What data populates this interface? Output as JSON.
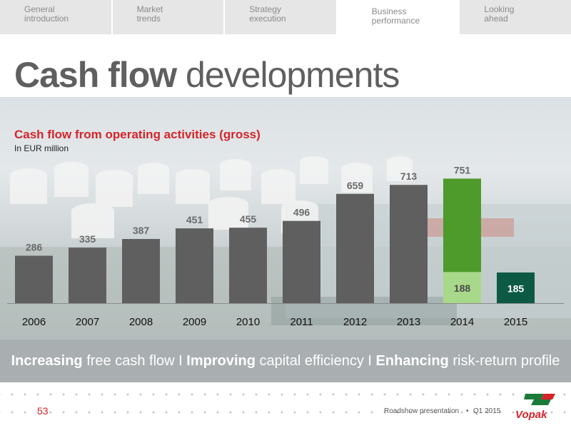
{
  "nav": {
    "tabs": [
      {
        "line1": "General",
        "line2": "introduction"
      },
      {
        "line1": "Market",
        "line2": "trends"
      },
      {
        "line1": "Strategy",
        "line2": "execution"
      },
      {
        "line1": "Business",
        "line2": "performance"
      },
      {
        "line1": "Looking",
        "line2": "ahead"
      }
    ],
    "active_index": 3
  },
  "title": {
    "bold": "Cash flow",
    "rest": " developments"
  },
  "banner": [
    {
      "text": "Increasing",
      "bold": true
    },
    {
      "text": " free cash flow I ",
      "bold": false
    },
    {
      "text": "Improving",
      "bold": true
    },
    {
      "text": " capital efficiency I ",
      "bold": false
    },
    {
      "text": "Enhancing",
      "bold": true
    },
    {
      "text": " risk-return profile",
      "bold": false
    }
  ],
  "footer": {
    "page_number": "53",
    "presentation": "Roadshow presentation",
    "date": "Q1 2015",
    "logo_text": "Vopak"
  },
  "colors": {
    "bar_gray": "#5f5f5f",
    "bar_green": "#4e9a2a",
    "bar_light_green": "#a8d88a",
    "bar_teal": "#0d5a44",
    "title_red": "#d6242a"
  },
  "chart_data": {
    "type": "bar",
    "title": "Cash flow from operating activities (gross)",
    "subtitle": "In EUR million",
    "categories": [
      "2006",
      "2007",
      "2008",
      "2009",
      "2010",
      "2011",
      "2012",
      "2013",
      "2014",
      "2015"
    ],
    "values": [
      286,
      335,
      387,
      451,
      455,
      496,
      659,
      713,
      751,
      185
    ],
    "ylim": [
      0,
      800
    ],
    "overlay": {
      "category": "2014",
      "value": 188,
      "color": "light-green"
    },
    "bar_styles": [
      "gray",
      "gray",
      "gray",
      "gray",
      "gray",
      "gray",
      "gray",
      "gray",
      "green",
      "teal"
    ]
  }
}
